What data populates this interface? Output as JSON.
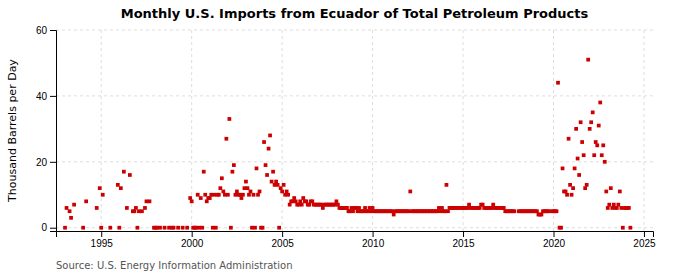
{
  "chart_data": {
    "type": "scatter",
    "title": "Monthly U.S. Imports from Ecuador of Total Petroleum Products",
    "ylabel": "Thousand Barrels per Day",
    "annotations": [
      "Source: U.S. Energy Information Administration"
    ],
    "color": "#cc0000",
    "marker": "square",
    "grid": true,
    "xlim": [
      1992.5,
      2025.5
    ],
    "ylim": [
      -1,
      60
    ],
    "xticks": [
      1995,
      2000,
      2005,
      2010,
      2015,
      2020,
      2025
    ],
    "yticks": [
      0,
      20,
      40,
      60
    ],
    "x": [
      1993.083,
      1993.25,
      1993.333,
      1993.5,
      1994.167,
      1994.75,
      1994.917,
      1995.083,
      1995.917,
      1996.083,
      1996.25,
      1996.417,
      1996.583,
      1996.75,
      1996.833,
      1996.917,
      1997.083,
      1997.25,
      1997.417,
      1997.5,
      1997.667,
      1999.917,
      2000.0,
      2000.333,
      2000.5,
      2000.667,
      2000.75,
      2000.833,
      2000.917,
      2001.0,
      2001.083,
      2001.25,
      2001.417,
      2001.5,
      2001.583,
      2001.667,
      2001.75,
      2001.833,
      2001.917,
      2002.0,
      2002.083,
      2002.25,
      2002.333,
      2002.417,
      2002.5,
      2002.583,
      2002.667,
      2002.75,
      2002.833,
      2002.917,
      2003.0,
      2003.083,
      2003.167,
      2003.25,
      2003.417,
      2003.583,
      2003.667,
      2003.75,
      2004.0,
      2004.083,
      2004.167,
      2004.25,
      2004.333,
      2004.417,
      2004.5,
      2004.583,
      2004.667,
      2004.75,
      2004.917,
      2005.0,
      2005.083,
      2005.167,
      2005.25,
      2005.333,
      2005.417,
      2005.5,
      2005.583,
      2005.667,
      2005.75,
      2005.833,
      2005.917,
      2006.0,
      2006.083,
      2006.167,
      2006.25,
      2006.333,
      2006.417,
      2006.5,
      2006.583,
      2006.667,
      2006.75,
      2006.833,
      2006.917,
      2007.0,
      2007.083,
      2007.167,
      2007.25,
      2007.333,
      2007.417,
      2007.5,
      2007.583,
      2007.667,
      2007.75,
      2007.833,
      2007.917,
      2008.0,
      2008.083,
      2008.167,
      2008.25,
      2008.333,
      2008.417,
      2008.5,
      2008.583,
      2008.667,
      2008.75,
      2008.833,
      2008.917,
      2009.0,
      2009.083,
      2009.167,
      2009.25,
      2009.333,
      2009.417,
      2009.5,
      2009.583,
      2009.667,
      2009.75,
      2009.833,
      2009.917,
      2010.0,
      2010.083,
      2010.167,
      2010.25,
      2010.333,
      2010.417,
      2010.5,
      2010.583,
      2010.667,
      2010.75,
      2010.833,
      2010.917,
      2011.0,
      2011.083,
      2011.167,
      2011.25,
      2011.333,
      2011.417,
      2011.5,
      2011.583,
      2011.667,
      2011.75,
      2011.833,
      2011.917,
      2012.0,
      2012.083,
      2012.167,
      2012.25,
      2012.333,
      2012.417,
      2012.5,
      2012.583,
      2012.667,
      2012.75,
      2012.833,
      2012.917,
      2013.0,
      2013.083,
      2013.167,
      2013.25,
      2013.333,
      2013.417,
      2013.5,
      2013.583,
      2013.667,
      2013.75,
      2013.833,
      2013.917,
      2014.0,
      2014.083,
      2014.167,
      2014.25,
      2014.333,
      2014.417,
      2014.5,
      2014.583,
      2014.667,
      2014.75,
      2014.833,
      2014.917,
      2015.0,
      2015.083,
      2015.167,
      2015.25,
      2015.333,
      2015.417,
      2015.5,
      2015.583,
      2015.667,
      2015.75,
      2015.833,
      2015.917,
      2016.0,
      2016.083,
      2016.167,
      2016.25,
      2016.333,
      2016.417,
      2016.5,
      2016.583,
      2016.667,
      2016.75,
      2016.833,
      2016.917,
      2017.0,
      2017.083,
      2017.167,
      2017.25,
      2017.333,
      2017.417,
      2017.5,
      2017.583,
      2017.667,
      2017.75,
      2017.833,
      2018.083,
      2018.167,
      2018.25,
      2018.333,
      2018.417,
      2018.5,
      2018.583,
      2018.667,
      2018.75,
      2018.833,
      2018.917,
      2019.0,
      2019.083,
      2019.167,
      2019.25,
      2019.333,
      2019.417,
      2019.5,
      2019.583,
      2019.667,
      2019.75,
      2019.917,
      2020.0,
      2020.083,
      2020.167,
      2020.25,
      2020.5,
      2020.583,
      2020.667,
      2020.75,
      2020.833,
      2020.917,
      2021.0,
      2021.083,
      2021.167,
      2021.25,
      2021.333,
      2021.417,
      2021.5,
      2021.583,
      2021.667,
      2021.75,
      2021.833,
      2021.917,
      2022.0,
      2022.083,
      2022.167,
      2022.25,
      2022.333,
      2022.417,
      2022.5,
      2022.583,
      2022.667,
      2022.75,
      2022.833,
      2022.917,
      2023.0,
      2023.083,
      2023.167,
      2023.25,
      2023.333,
      2023.417,
      2023.5,
      2023.583,
      2023.667,
      2023.75,
      2023.917,
      2024.0,
      2024.083,
      2024.167,
      1993.0,
      1994.0,
      1995.0,
      1995.5,
      1996.0,
      1997.0,
      1997.917,
      1998.0,
      1998.083,
      1998.25,
      1998.5,
      1998.75,
      1998.917,
      1999.0,
      1999.25,
      1999.5,
      1999.75,
      2000.083,
      2000.167,
      2000.25,
      2000.417,
      2000.583,
      2001.167,
      2001.333,
      2002.167,
      2003.333,
      2003.5,
      2003.833,
      2003.917,
      2004.833,
      2020.333,
      2020.417,
      2023.833,
      2024.25
    ],
    "values": [
      6,
      5,
      3,
      7,
      8,
      6,
      12,
      10,
      13,
      12,
      17,
      6,
      16,
      5,
      5,
      6,
      5,
      5,
      6,
      8,
      8,
      9,
      8,
      10,
      9,
      17,
      10,
      8,
      9,
      9,
      10,
      10,
      10,
      10,
      12,
      15,
      11,
      10,
      27,
      10,
      33,
      17,
      19,
      10,
      11,
      10,
      10,
      9,
      10,
      12,
      14,
      12,
      10,
      11,
      10,
      18,
      10,
      11,
      26,
      19,
      16,
      24,
      28,
      14,
      17,
      13,
      14,
      13,
      12,
      11,
      13,
      10,
      11,
      10,
      7,
      8,
      8,
      9,
      8,
      7,
      7,
      8,
      7,
      9,
      8,
      8,
      7,
      7,
      8,
      8,
      7,
      7,
      7,
      7,
      7,
      7,
      6,
      7,
      7,
      7,
      7,
      7,
      7,
      7,
      7,
      8,
      7,
      6,
      6,
      6,
      6,
      6,
      6,
      5,
      5,
      6,
      5,
      6,
      6,
      5,
      6,
      5,
      5,
      5,
      6,
      5,
      5,
      6,
      5,
      6,
      5,
      5,
      5,
      5,
      5,
      5,
      5,
      5,
      5,
      5,
      5,
      5,
      5,
      4,
      5,
      5,
      5,
      5,
      5,
      5,
      5,
      5,
      5,
      5,
      11,
      5,
      5,
      5,
      5,
      5,
      5,
      5,
      5,
      5,
      5,
      5,
      5,
      5,
      5,
      5,
      5,
      5,
      5,
      6,
      5,
      6,
      5,
      5,
      13,
      5,
      6,
      6,
      6,
      6,
      6,
      6,
      6,
      6,
      6,
      6,
      6,
      6,
      6,
      7,
      6,
      6,
      6,
      6,
      6,
      6,
      6,
      7,
      7,
      6,
      6,
      6,
      6,
      6,
      6,
      7,
      6,
      6,
      6,
      6,
      6,
      6,
      6,
      5,
      5,
      5,
      5,
      5,
      5,
      5,
      5,
      5,
      5,
      5,
      5,
      5,
      5,
      5,
      5,
      5,
      5,
      5,
      5,
      4,
      4,
      4,
      5,
      5,
      5,
      5,
      5,
      5,
      5,
      5,
      5,
      44,
      18,
      11,
      11,
      10,
      27,
      13,
      10,
      12,
      18,
      30,
      21,
      16,
      32,
      26,
      22,
      12,
      13,
      51,
      30,
      32,
      35,
      22,
      26,
      25,
      31,
      38,
      22,
      25,
      20,
      11,
      6,
      7,
      12,
      6,
      7,
      6,
      6,
      7,
      11,
      6,
      6,
      6,
      6,
      6,
      0,
      0,
      0,
      0,
      0,
      0,
      0,
      0,
      0,
      0,
      0,
      0,
      0,
      0,
      0,
      0,
      0,
      0,
      0,
      0,
      0,
      0,
      0,
      0,
      0,
      0,
      0,
      0,
      0,
      0,
      0,
      0,
      0,
      0
    ]
  }
}
